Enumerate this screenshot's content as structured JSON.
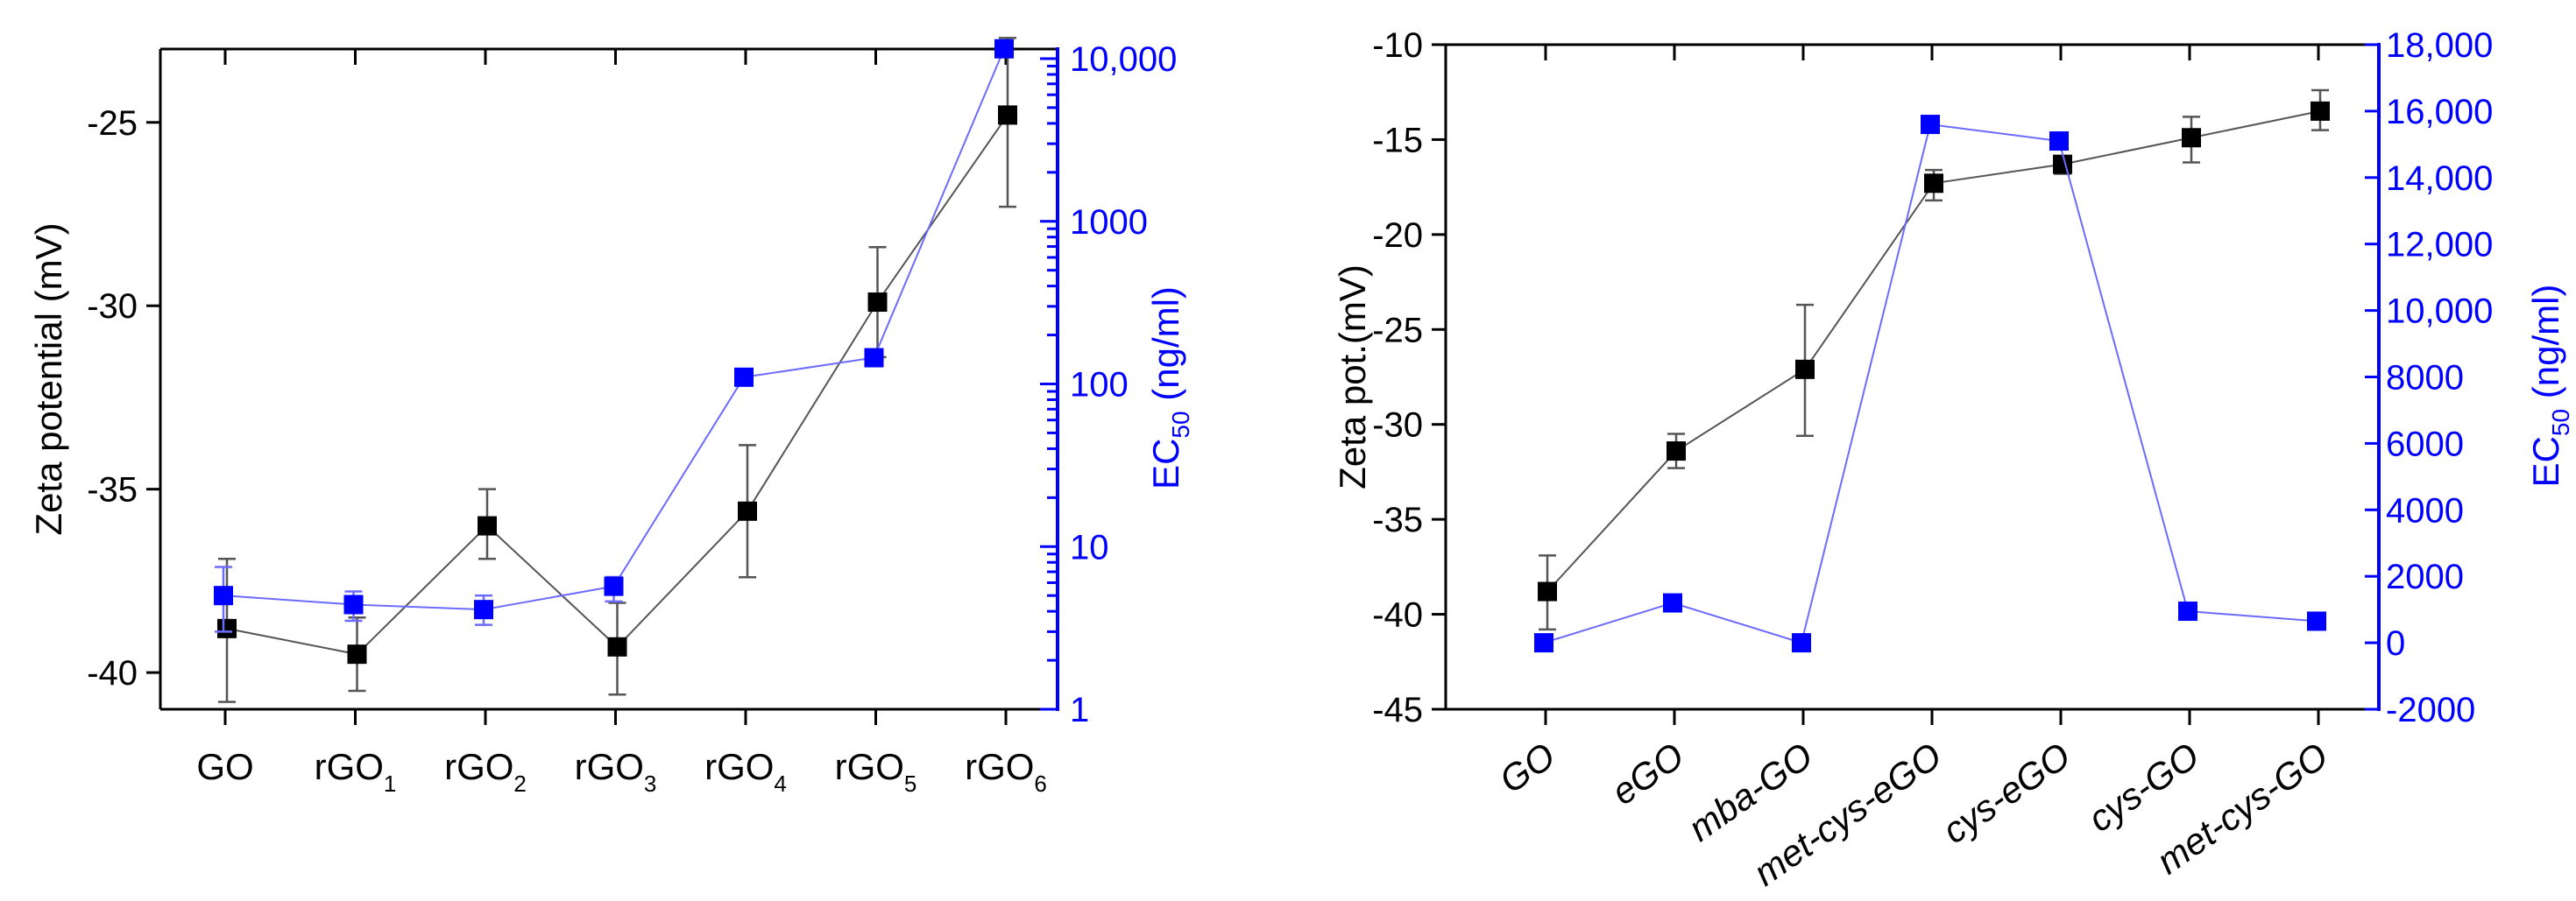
{
  "figure": {
    "left_panel": {
      "y_left_title": "Zeta potential (mV)",
      "y_right_title_main": "EC",
      "y_right_title_sub": "50",
      "y_right_title_tail": " (ng/ml)",
      "y_left_ticks": [
        "-25",
        "-30",
        "-35",
        "-40"
      ],
      "y_right_ticks": [
        "10,000",
        "1000",
        "100",
        "10",
        "1"
      ],
      "categories": [
        {
          "main": "GO",
          "sub": ""
        },
        {
          "main": "rGO",
          "sub": "1"
        },
        {
          "main": "rGO",
          "sub": "2"
        },
        {
          "main": "rGO",
          "sub": "3"
        },
        {
          "main": "rGO",
          "sub": "4"
        },
        {
          "main": "rGO",
          "sub": "5"
        },
        {
          "main": "rGO",
          "sub": "6"
        }
      ]
    },
    "right_panel": {
      "y_left_title": "Zeta pot.(mV)",
      "y_right_title_main": "EC",
      "y_right_title_sub": "50",
      "y_right_title_tail": " (ng/ml)",
      "y_left_ticks": [
        "-10",
        "-15",
        "-20",
        "-25",
        "-30",
        "-35",
        "-40",
        "-45"
      ],
      "y_right_ticks": [
        "18,000",
        "16,000",
        "14,000",
        "12,000",
        "10,000",
        "8000",
        "6000",
        "4000",
        "2000",
        "0",
        "-2000"
      ],
      "categories": [
        "GO",
        "eGO",
        "mba-GO",
        "met-cys-eGO",
        "cys-eGO",
        "cys-GO",
        "met-cys-GO"
      ]
    },
    "colors": {
      "zeta_marker": "#000000",
      "zeta_line": "#555555",
      "ec50_marker": "#0000ff",
      "ec50_line": "#6b6bff",
      "ec50_axis": "#0000ff"
    }
  },
  "chart_data": [
    {
      "type": "line",
      "title": "",
      "xlabel": "",
      "ylabel": "Zeta potential (mV)",
      "ylabel_right": "EC50 (ng/ml)",
      "categories": [
        "GO",
        "rGO1",
        "rGO2",
        "rGO3",
        "rGO4",
        "rGO5",
        "rGO6"
      ],
      "ylim": [
        -41,
        -23
      ],
      "ylim_right": [
        1,
        13000
      ],
      "yscale_right": "log",
      "grid": false,
      "legend": "none",
      "series": [
        {
          "name": "Zeta potential (mV)",
          "axis": "left",
          "color": "#000000",
          "marker": "square",
          "values": [
            -38.8,
            -39.5,
            -36.0,
            -39.3,
            -35.6,
            -29.9,
            -24.8
          ],
          "error_low": [
            -40.8,
            -40.5,
            -36.9,
            -40.6,
            -37.4,
            -31.4,
            -27.3
          ],
          "error_high": [
            -36.9,
            -38.5,
            -35.0,
            -38.1,
            -33.8,
            -28.4,
            -22.7
          ]
        },
        {
          "name": "EC50 (ng/ml)",
          "axis": "right",
          "color": "#0000ff",
          "marker": "square",
          "values": [
            5.0,
            4.4,
            4.1,
            5.7,
            110,
            145,
            11500
          ],
          "error_low": [
            3.0,
            3.5,
            3.3,
            4.6,
            null,
            null,
            null
          ],
          "error_high": [
            7.5,
            5.3,
            5.0,
            6.5,
            null,
            null,
            null
          ]
        }
      ]
    },
    {
      "type": "line",
      "title": "",
      "xlabel": "",
      "ylabel": "Zeta pot.(mV)",
      "ylabel_right": "EC50 (ng/ml)",
      "categories": [
        "GO",
        "eGO",
        "mba-GO",
        "met-cys-eGO",
        "cys-eGO",
        "cys-GO",
        "met-cys-GO"
      ],
      "ylim": [
        -45,
        -10
      ],
      "ylim_right": [
        -2000,
        18000
      ],
      "yscale_right": "linear",
      "grid": false,
      "legend": "none",
      "series": [
        {
          "name": "Zeta pot.(mV)",
          "axis": "left",
          "color": "#000000",
          "marker": "square",
          "values": [
            -38.8,
            -31.4,
            -27.1,
            -17.3,
            -16.3,
            -14.9,
            -13.5
          ],
          "error_low": [
            -40.8,
            -32.3,
            -30.6,
            -18.2,
            -16.8,
            -16.2,
            -14.5
          ],
          "error_high": [
            -36.9,
            -30.5,
            -23.7,
            -16.6,
            -15.9,
            -13.8,
            -12.4
          ]
        },
        {
          "name": "EC50 (ng/ml)",
          "axis": "right",
          "color": "#0000ff",
          "marker": "square",
          "values": [
            0,
            1200,
            0,
            15600,
            15100,
            950,
            650
          ],
          "error_low": [
            null,
            null,
            null,
            15350,
            null,
            null,
            null
          ],
          "error_high": [
            null,
            null,
            null,
            15850,
            null,
            null,
            null
          ]
        }
      ]
    }
  ]
}
